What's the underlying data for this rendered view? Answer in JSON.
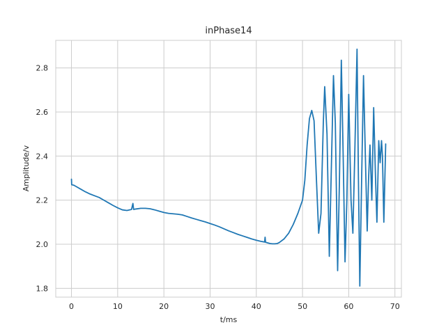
{
  "chart_data": {
    "type": "line",
    "title": "inPhase14",
    "xlabel": "t/ms",
    "ylabel": "Amplitude/v",
    "xlim": [
      -3.4,
      71.4
    ],
    "ylim": [
      1.76,
      2.925
    ],
    "xticks": [
      0,
      10,
      20,
      30,
      40,
      50,
      60,
      70
    ],
    "yticks": [
      1.8,
      2.0,
      2.2,
      2.4,
      2.6,
      2.8
    ],
    "ytick_labels": [
      "1.8",
      "2.0",
      "2.2",
      "2.4",
      "2.6",
      "2.8"
    ],
    "grid": true,
    "series": [
      {
        "color": "#1f77b4",
        "points": [
          [
            0.0,
            2.295
          ],
          [
            0.05,
            2.27
          ],
          [
            0.5,
            2.268
          ],
          [
            1.0,
            2.262
          ],
          [
            2.0,
            2.25
          ],
          [
            3.0,
            2.238
          ],
          [
            4.0,
            2.228
          ],
          [
            5.0,
            2.22
          ],
          [
            6.0,
            2.212
          ],
          [
            7.0,
            2.2
          ],
          [
            8.0,
            2.188
          ],
          [
            9.0,
            2.176
          ],
          [
            10.0,
            2.165
          ],
          [
            11.0,
            2.156
          ],
          [
            12.0,
            2.153
          ],
          [
            13.0,
            2.158
          ],
          [
            13.3,
            2.185
          ],
          [
            13.45,
            2.158
          ],
          [
            14.0,
            2.16
          ],
          [
            15.0,
            2.163
          ],
          [
            16.0,
            2.163
          ],
          [
            17.0,
            2.161
          ],
          [
            18.0,
            2.156
          ],
          [
            19.0,
            2.15
          ],
          [
            20.0,
            2.144
          ],
          [
            21.0,
            2.14
          ],
          [
            22.0,
            2.138
          ],
          [
            23.0,
            2.136
          ],
          [
            24.0,
            2.133
          ],
          [
            25.0,
            2.126
          ],
          [
            26.0,
            2.119
          ],
          [
            27.0,
            2.113
          ],
          [
            28.0,
            2.107
          ],
          [
            29.0,
            2.101
          ],
          [
            30.0,
            2.094
          ],
          [
            31.0,
            2.087
          ],
          [
            32.0,
            2.079
          ],
          [
            33.0,
            2.07
          ],
          [
            34.0,
            2.061
          ],
          [
            35.0,
            2.053
          ],
          [
            36.0,
            2.045
          ],
          [
            37.0,
            2.038
          ],
          [
            38.0,
            2.031
          ],
          [
            39.0,
            2.024
          ],
          [
            40.0,
            2.018
          ],
          [
            41.0,
            2.013
          ],
          [
            41.8,
            2.01
          ],
          [
            41.9,
            2.032
          ],
          [
            42.0,
            2.009
          ],
          [
            42.5,
            2.006
          ],
          [
            43.0,
            2.003
          ],
          [
            43.5,
            2.002
          ],
          [
            44.0,
            2.002
          ],
          [
            44.5,
            2.003
          ],
          [
            45.0,
            2.008
          ],
          [
            46.0,
            2.024
          ],
          [
            47.0,
            2.05
          ],
          [
            48.0,
            2.09
          ],
          [
            49.0,
            2.14
          ],
          [
            50.0,
            2.2
          ],
          [
            50.5,
            2.29
          ],
          [
            51.0,
            2.45
          ],
          [
            51.5,
            2.57
          ],
          [
            52.0,
            2.607
          ],
          [
            52.5,
            2.56
          ],
          [
            53.0,
            2.3
          ],
          [
            53.5,
            2.05
          ],
          [
            54.0,
            2.14
          ],
          [
            54.5,
            2.55
          ],
          [
            54.8,
            2.715
          ],
          [
            55.3,
            2.5
          ],
          [
            55.8,
            1.945
          ],
          [
            56.3,
            2.4
          ],
          [
            56.7,
            2.765
          ],
          [
            57.1,
            2.55
          ],
          [
            57.6,
            1.88
          ],
          [
            58.0,
            2.3
          ],
          [
            58.4,
            2.835
          ],
          [
            58.8,
            2.4
          ],
          [
            59.2,
            1.92
          ],
          [
            59.6,
            2.2
          ],
          [
            60.0,
            2.68
          ],
          [
            60.5,
            2.2
          ],
          [
            60.9,
            2.05
          ],
          [
            61.3,
            2.4
          ],
          [
            61.8,
            2.885
          ],
          [
            62.1,
            2.3
          ],
          [
            62.4,
            1.81
          ],
          [
            62.8,
            2.3
          ],
          [
            63.2,
            2.765
          ],
          [
            63.6,
            2.4
          ],
          [
            64.0,
            2.06
          ],
          [
            64.3,
            2.3
          ],
          [
            64.6,
            2.45
          ],
          [
            65.0,
            2.2
          ],
          [
            65.4,
            2.62
          ],
          [
            65.8,
            2.3
          ],
          [
            66.1,
            2.1
          ],
          [
            66.5,
            2.47
          ],
          [
            66.8,
            2.37
          ],
          [
            67.1,
            2.47
          ],
          [
            67.3,
            2.4
          ],
          [
            67.6,
            2.1
          ],
          [
            68.0,
            2.455
          ]
        ]
      }
    ]
  }
}
